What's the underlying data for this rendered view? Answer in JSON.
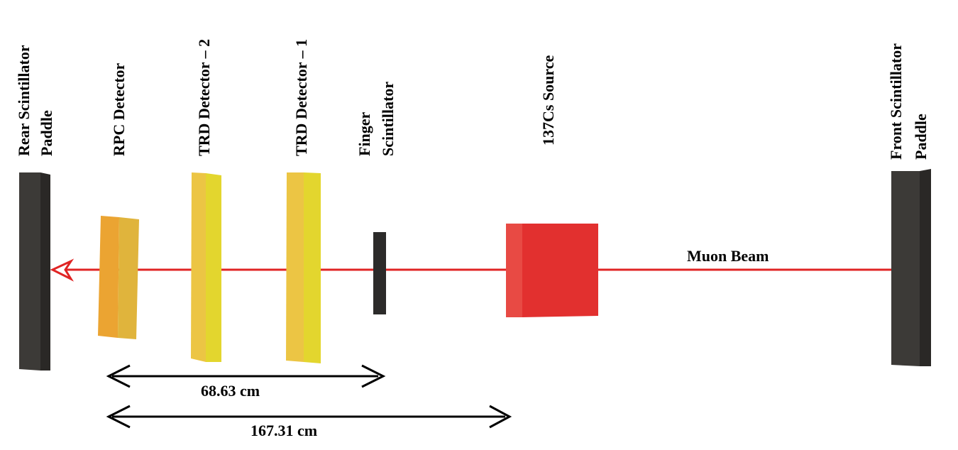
{
  "labels": {
    "rear_paddle": [
      "Rear Scintillator",
      "Paddle"
    ],
    "rpc": "RPC Detector",
    "trd2": "TRD Detector – 2",
    "trd1": "TRD Detector – 1",
    "finger": [
      "Finger",
      "Scintillator"
    ],
    "source": "137Cs Source",
    "front_paddle": [
      "Front Scintillator",
      "Paddle"
    ],
    "beam": "Muon Beam"
  },
  "distances": {
    "short": "68.63 cm",
    "long": "167.31 cm"
  },
  "colors": {
    "paddle_face": "#3c3a37",
    "paddle_side": "#2a2826",
    "rpc_face": "#eba432",
    "rpc_side": "#e0b43c",
    "trd_face": "#ecc544",
    "trd_side": "#e3d62e",
    "finger": "#2c2b2a",
    "source_face": "#e2302f",
    "source_side": "#e84a44",
    "beam": "#e02424",
    "dimension_arrow": "#000000"
  }
}
